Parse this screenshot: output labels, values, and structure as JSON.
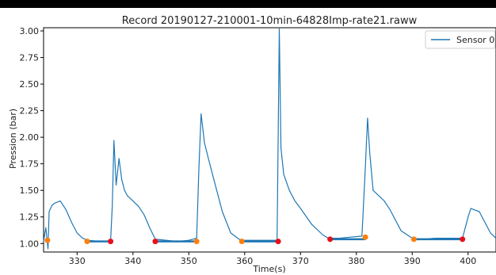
{
  "chart_data": {
    "type": "line",
    "title": "Record 20190127-210001-10min-64828Imp-rate21.raww",
    "xlabel": "Time(s)",
    "ylabel": "Pression (bar)",
    "xlim": [
      324,
      405
    ],
    "ylim": [
      0.92,
      3.03
    ],
    "x_ticks": [
      330,
      340,
      350,
      360,
      370,
      380,
      390,
      400
    ],
    "y_ticks": [
      1.0,
      1.25,
      1.5,
      1.75,
      2.0,
      2.25,
      2.5,
      2.75,
      3.0
    ],
    "x_tick_labels": [
      "330",
      "340",
      "350",
      "360",
      "370",
      "380",
      "390",
      "400"
    ],
    "y_tick_labels": [
      "1.00",
      "1.25",
      "1.50",
      "1.75",
      "2.00",
      "2.25",
      "2.50",
      "2.75",
      "3.00"
    ],
    "grid": false,
    "legend": {
      "position": "top-right"
    },
    "series": [
      {
        "name": "Sensor 0",
        "color": "#1f77b4",
        "x": [
          324.0,
          324.4,
          324.8,
          325.0,
          325.5,
          326.0,
          327.0,
          328.0,
          329.0,
          330.0,
          331.0,
          332.0,
          334.0,
          335.5,
          336.0,
          336.3,
          336.6,
          337.0,
          337.5,
          338.0,
          338.5,
          339.0,
          340.0,
          341.0,
          342.0,
          343.0,
          344.0,
          346.0,
          348.0,
          350.0,
          351.4,
          351.8,
          352.2,
          352.8,
          353.5,
          354.5,
          356.0,
          357.5,
          359.0,
          360.0,
          362.0,
          364.0,
          365.8,
          366.2,
          366.5,
          367.0,
          368.0,
          369.0,
          370.0,
          372.0,
          374.0,
          375.0,
          377.0,
          379.0,
          381.0,
          381.6,
          382.0,
          382.4,
          383.0,
          384.0,
          385.0,
          386.0,
          388.0,
          390.0,
          392.0,
          394.0,
          396.0,
          398.0,
          399.0,
          400.0,
          400.5,
          401.0,
          402.0,
          403.0,
          404.0,
          405.0
        ],
        "y": [
          1.02,
          1.15,
          0.95,
          1.3,
          1.36,
          1.38,
          1.4,
          1.32,
          1.2,
          1.1,
          1.05,
          1.03,
          1.02,
          1.02,
          1.03,
          1.35,
          1.97,
          1.55,
          1.8,
          1.6,
          1.5,
          1.45,
          1.4,
          1.35,
          1.27,
          1.15,
          1.04,
          1.03,
          1.02,
          1.03,
          1.05,
          1.7,
          2.22,
          1.95,
          1.8,
          1.6,
          1.3,
          1.1,
          1.04,
          1.03,
          1.03,
          1.03,
          1.03,
          3.02,
          1.9,
          1.65,
          1.5,
          1.4,
          1.33,
          1.18,
          1.08,
          1.05,
          1.05,
          1.06,
          1.07,
          1.7,
          2.18,
          1.85,
          1.5,
          1.45,
          1.4,
          1.32,
          1.12,
          1.05,
          1.04,
          1.05,
          1.05,
          1.05,
          1.05,
          1.25,
          1.33,
          1.32,
          1.3,
          1.2,
          1.1,
          1.05
        ]
      }
    ],
    "markers": [
      {
        "x": 324.7,
        "y": 1.03,
        "color": "#ff7f0e"
      },
      {
        "x": 331.8,
        "y": 1.02,
        "color": "#ff7f0e"
      },
      {
        "x": 336.0,
        "y": 1.02,
        "color": "#e6101a"
      },
      {
        "x": 344.0,
        "y": 1.02,
        "color": "#e6101a"
      },
      {
        "x": 351.4,
        "y": 1.02,
        "color": "#ff7f0e"
      },
      {
        "x": 359.5,
        "y": 1.02,
        "color": "#ff7f0e"
      },
      {
        "x": 366.0,
        "y": 1.02,
        "color": "#e6101a"
      },
      {
        "x": 375.3,
        "y": 1.04,
        "color": "#e6101a"
      },
      {
        "x": 381.6,
        "y": 1.06,
        "color": "#ff7f0e"
      },
      {
        "x": 390.3,
        "y": 1.04,
        "color": "#ff7f0e"
      },
      {
        "x": 399.0,
        "y": 1.04,
        "color": "#e6101a"
      }
    ],
    "baseline_segments": [
      {
        "x0": 331.8,
        "x1": 336.0,
        "y": 1.02,
        "color": "#1f77b4"
      },
      {
        "x0": 344.0,
        "x1": 351.4,
        "y": 1.02,
        "color": "#1f77b4"
      },
      {
        "x0": 359.5,
        "x1": 366.0,
        "y": 1.02,
        "color": "#1f77b4"
      },
      {
        "x0": 375.3,
        "x1": 381.6,
        "y": 1.04,
        "color": "#1f77b4"
      },
      {
        "x0": 390.3,
        "x1": 399.0,
        "y": 1.04,
        "color": "#1f77b4"
      }
    ]
  }
}
